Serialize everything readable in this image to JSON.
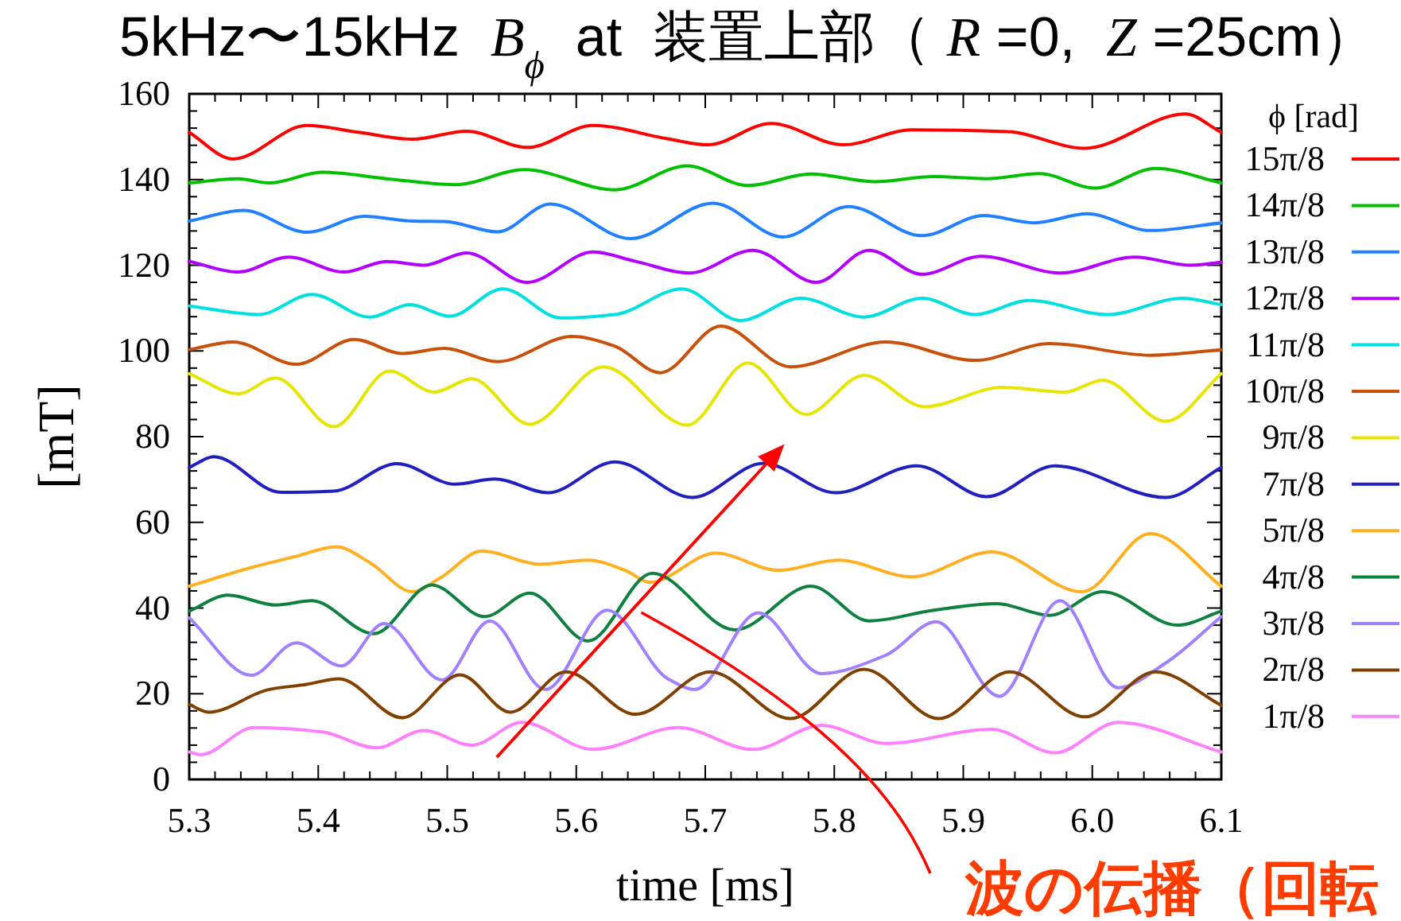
{
  "chart_data": {
    "type": "line",
    "title": "5kHz〜15kHz  *B*$_{ϕ}$  at  装置上部（ *R* =0,  *Z* =25cm）",
    "xlabel": "time [ms]",
    "ylabel": "[mT]",
    "legend_title": "ϕ [rad]",
    "annotations": [
      "波の伝播（回転"
    ],
    "xlim": [
      5.3,
      6.1
    ],
    "ylim": [
      0,
      160
    ],
    "xticks": [
      5.3,
      {
        "value": 5.32,
        "label": null
      },
      {
        "value": 5.34,
        "label": null
      },
      {
        "value": 5.36,
        "label": null
      },
      {
        "value": 5.38,
        "label": null
      },
      5.4,
      {
        "value": 5.42,
        "label": null
      },
      {
        "value": 5.44,
        "label": null
      },
      {
        "value": 5.46,
        "label": null
      },
      {
        "value": 5.48,
        "label": null
      },
      5.5,
      {
        "value": 5.52,
        "label": null
      },
      {
        "value": 5.54,
        "label": null
      },
      {
        "value": 5.56,
        "label": null
      },
      {
        "value": 5.58,
        "label": null
      },
      5.6,
      {
        "value": 5.62,
        "label": null
      },
      {
        "value": 5.64,
        "label": null
      },
      {
        "value": 5.66,
        "label": null
      },
      {
        "value": 5.68,
        "label": null
      },
      5.7,
      {
        "value": 5.72,
        "label": null
      },
      {
        "value": 5.74,
        "label": null
      },
      {
        "value": 5.76,
        "label": null
      },
      {
        "value": 5.78,
        "label": null
      },
      5.8,
      {
        "value": 5.82,
        "label": null
      },
      {
        "value": 5.84,
        "label": null
      },
      {
        "value": 5.86,
        "label": null
      },
      {
        "value": 5.88,
        "label": null
      },
      5.9,
      {
        "value": 5.92,
        "label": null
      },
      {
        "value": 5.94,
        "label": null
      },
      {
        "value": 5.96,
        "label": null
      },
      {
        "value": 5.98,
        "label": null
      },
      {
        "value": 6,
        "label": "6.0"
      },
      {
        "value": 6.02,
        "label": null
      },
      {
        "value": 6.04,
        "label": null
      },
      {
        "value": 6.06,
        "label": null
      },
      {
        "value": 6.08,
        "label": null
      },
      6.1
    ],
    "yticks": [
      0,
      {
        "value": 4,
        "label": null
      },
      {
        "value": 8,
        "label": null
      },
      {
        "value": 12,
        "label": null
      },
      {
        "value": 16,
        "label": null
      },
      20,
      {
        "value": 24,
        "label": null
      },
      {
        "value": 28,
        "label": null
      },
      {
        "value": 32,
        "label": null
      },
      {
        "value": 36,
        "label": null
      },
      40,
      {
        "value": 44,
        "label": null
      },
      {
        "value": 48,
        "label": null
      },
      {
        "value": 52,
        "label": null
      },
      {
        "value": 56,
        "label": null
      },
      60,
      {
        "value": 64,
        "label": null
      },
      {
        "value": 68,
        "label": null
      },
      {
        "value": 72,
        "label": null
      },
      {
        "value": 76,
        "label": null
      },
      80,
      {
        "value": 84,
        "label": null
      },
      {
        "value": 88,
        "label": null
      },
      {
        "value": 92,
        "label": null
      },
      {
        "value": 96,
        "label": null
      },
      100,
      {
        "value": 104,
        "label": null
      },
      {
        "value": 108,
        "label": null
      },
      {
        "value": 112,
        "label": null
      },
      {
        "value": 116,
        "label": null
      },
      120,
      {
        "value": 124,
        "label": null
      },
      {
        "value": 128,
        "label": null
      },
      {
        "value": 132,
        "label": null
      },
      {
        "value": 136,
        "label": null
      },
      140,
      {
        "value": 144,
        "label": null
      },
      {
        "value": 148,
        "label": null
      },
      {
        "value": 152,
        "label": null
      },
      {
        "value": 156,
        "label": null
      },
      160
    ],
    "legend": "right",
    "series": [
      {
        "name": "15π/8",
        "color": "#ff0000",
        "x": [
          5.3,
          5.334,
          5.391,
          5.432,
          5.473,
          5.515,
          5.562,
          5.613,
          5.671,
          5.702,
          5.751,
          5.807,
          5.86,
          5.934,
          5.994,
          6.072,
          6.1
        ],
        "values": [
          151.0,
          144.8,
          152.6,
          151.0,
          149.4,
          151.3,
          147.5,
          152.6,
          149.5,
          148.1,
          153.1,
          148.1,
          151.6,
          151.2,
          147.3,
          155.3,
          151.0
        ]
      },
      {
        "name": "14π/8",
        "color": "#00c000",
        "x": [
          5.3,
          5.338,
          5.362,
          5.403,
          5.453,
          5.506,
          5.56,
          5.63,
          5.686,
          5.733,
          5.782,
          5.831,
          5.877,
          5.918,
          5.959,
          6.002,
          6.049,
          6.1
        ],
        "values": [
          139.2,
          140.2,
          139.2,
          141.7,
          140.2,
          138.8,
          142.3,
          137.6,
          143.2,
          138.6,
          141.3,
          139.5,
          140.7,
          140.2,
          141.4,
          138.0,
          142.6,
          139.2
        ]
      },
      {
        "name": "13π/8",
        "color": "#2080ff",
        "x": [
          5.3,
          5.342,
          5.391,
          5.436,
          5.473,
          5.498,
          5.539,
          5.58,
          5.642,
          5.706,
          5.76,
          5.811,
          5.868,
          5.916,
          5.955,
          5.996,
          6.045,
          6.1
        ],
        "values": [
          130.3,
          132.8,
          127.7,
          131.4,
          130.3,
          130.2,
          127.8,
          134.3,
          126.2,
          134.5,
          126.6,
          133.7,
          126.9,
          131.6,
          129.9,
          132.0,
          128.1,
          129.9
        ]
      },
      {
        "name": "12π/8",
        "color": "#b400ff",
        "x": [
          5.3,
          5.338,
          5.377,
          5.42,
          5.453,
          5.482,
          5.515,
          5.562,
          5.613,
          5.646,
          5.688,
          5.737,
          5.786,
          5.827,
          5.868,
          5.914,
          5.975,
          6.033,
          6.076,
          6.1
        ],
        "values": [
          120.9,
          118.4,
          121.9,
          118.4,
          120.9,
          120.0,
          122.9,
          116.0,
          123.1,
          120.9,
          118.2,
          123.5,
          116.0,
          123.5,
          117.9,
          122.1,
          118.2,
          121.9,
          120.0,
          120.7
        ]
      },
      {
        "name": "11π/8",
        "color": "#00e0e0",
        "x": [
          5.3,
          5.354,
          5.395,
          5.44,
          5.471,
          5.502,
          5.543,
          5.588,
          5.63,
          5.682,
          5.727,
          5.774,
          5.823,
          5.868,
          5.909,
          5.951,
          6.012,
          6.07,
          6.1
        ],
        "values": [
          110.5,
          108.5,
          113.2,
          107.9,
          110.8,
          108.1,
          114.5,
          107.7,
          108.5,
          114.5,
          107.1,
          112.3,
          107.9,
          112.3,
          108.5,
          111.8,
          108.5,
          112.3,
          110.8
        ]
      },
      {
        "name": "10π/8",
        "color": "#c8500a",
        "x": [
          5.3,
          5.334,
          5.383,
          5.428,
          5.465,
          5.498,
          5.539,
          5.597,
          5.63,
          5.665,
          5.712,
          5.766,
          5.84,
          5.909,
          5.967,
          6.045,
          6.1
        ],
        "values": [
          100.3,
          102.1,
          96.9,
          102.7,
          99.4,
          100.6,
          97.5,
          103.4,
          101.1,
          94.9,
          105.8,
          96.3,
          102.1,
          97.8,
          101.7,
          99.0,
          100.3
        ]
      },
      {
        "name": "9π/8",
        "color": "#e6e600",
        "x": [
          5.3,
          5.338,
          5.367,
          5.412,
          5.455,
          5.49,
          5.519,
          5.564,
          5.621,
          5.686,
          5.733,
          5.778,
          5.823,
          5.87,
          5.93,
          5.979,
          6.008,
          6.057,
          6.1
        ],
        "values": [
          94.7,
          90.0,
          93.7,
          82.3,
          95.3,
          90.4,
          93.5,
          82.9,
          96.3,
          82.7,
          97.2,
          85.2,
          94.3,
          87.0,
          91.5,
          90.4,
          93.2,
          83.6,
          94.7
        ]
      },
      {
        "name": "7π/8",
        "color": "#2020c0",
        "x": [
          5.3,
          5.319,
          5.371,
          5.412,
          5.461,
          5.506,
          5.537,
          5.578,
          5.63,
          5.69,
          5.745,
          5.801,
          5.864,
          5.918,
          5.971,
          6.057,
          6.1
        ],
        "values": [
          72.8,
          75.3,
          67.0,
          67.3,
          73.7,
          68.9,
          70.1,
          66.9,
          74.1,
          65.8,
          73.8,
          66.9,
          73.2,
          66.0,
          73.2,
          65.8,
          72.8
        ]
      },
      {
        "name": "5π/8",
        "color": "#ffb020",
        "x": [
          5.3,
          5.35,
          5.383,
          5.414,
          5.44,
          5.473,
          5.494,
          5.527,
          5.572,
          5.609,
          5.638,
          5.657,
          5.708,
          5.757,
          5.803,
          5.86,
          5.922,
          5.992,
          6.045,
          6.1
        ],
        "values": [
          45.1,
          49.6,
          52.1,
          54.3,
          50.6,
          43.8,
          46.9,
          53.3,
          50.2,
          51.2,
          48.8,
          46.0,
          52.8,
          48.8,
          51.2,
          47.3,
          53.1,
          43.8,
          57.4,
          45.1
        ]
      },
      {
        "name": "4π/8",
        "color": "#108040",
        "x": [
          5.3,
          5.33,
          5.367,
          5.395,
          5.443,
          5.488,
          5.529,
          5.564,
          5.609,
          5.659,
          5.723,
          5.782,
          5.827,
          5.877,
          5.926,
          5.967,
          6.008,
          6.066,
          6.1
        ],
        "values": [
          39.3,
          43.0,
          40.7,
          41.7,
          34.0,
          45.4,
          38.0,
          43.5,
          32.3,
          48.1,
          34.9,
          45.1,
          37.0,
          39.5,
          41.0,
          38.3,
          43.8,
          36.0,
          39.3
        ]
      },
      {
        "name": "3π/8",
        "color": "#a080ff",
        "x": [
          5.3,
          5.348,
          5.383,
          5.418,
          5.451,
          5.496,
          5.533,
          5.576,
          5.624,
          5.671,
          5.692,
          5.741,
          5.79,
          5.84,
          5.879,
          5.928,
          5.975,
          6.02,
          6.057,
          6.1
        ],
        "values": [
          37.7,
          24.3,
          31.9,
          26.5,
          36.4,
          23.2,
          37.0,
          21.0,
          39.5,
          23.5,
          21.0,
          38.9,
          24.7,
          29.0,
          36.8,
          19.4,
          41.7,
          21.4,
          27.2,
          38.0
        ]
      },
      {
        "name": "2π/8",
        "color": "#804000",
        "x": [
          5.3,
          5.315,
          5.362,
          5.391,
          5.416,
          5.465,
          5.51,
          5.549,
          5.592,
          5.646,
          5.704,
          5.766,
          5.823,
          5.881,
          5.936,
          5.994,
          6.049,
          6.1
        ],
        "values": [
          17.5,
          15.7,
          21.0,
          22.2,
          23.5,
          14.4,
          24.4,
          15.7,
          25.1,
          15.2,
          25.1,
          14.2,
          25.7,
          14.2,
          25.1,
          14.6,
          25.1,
          17.3
        ]
      },
      {
        "name": "1π/8",
        "color": "#ff80ff",
        "x": [
          5.3,
          5.309,
          5.35,
          5.403,
          5.445,
          5.482,
          5.519,
          5.558,
          5.613,
          5.679,
          5.737,
          5.79,
          5.84,
          5.922,
          5.971,
          6.02,
          6.1
        ],
        "values": [
          6.4,
          5.8,
          12.1,
          11.1,
          7.4,
          11.4,
          8.0,
          13.3,
          7.0,
          12.1,
          7.0,
          12.6,
          8.4,
          11.7,
          6.2,
          13.3,
          6.4
        ]
      }
    ]
  }
}
